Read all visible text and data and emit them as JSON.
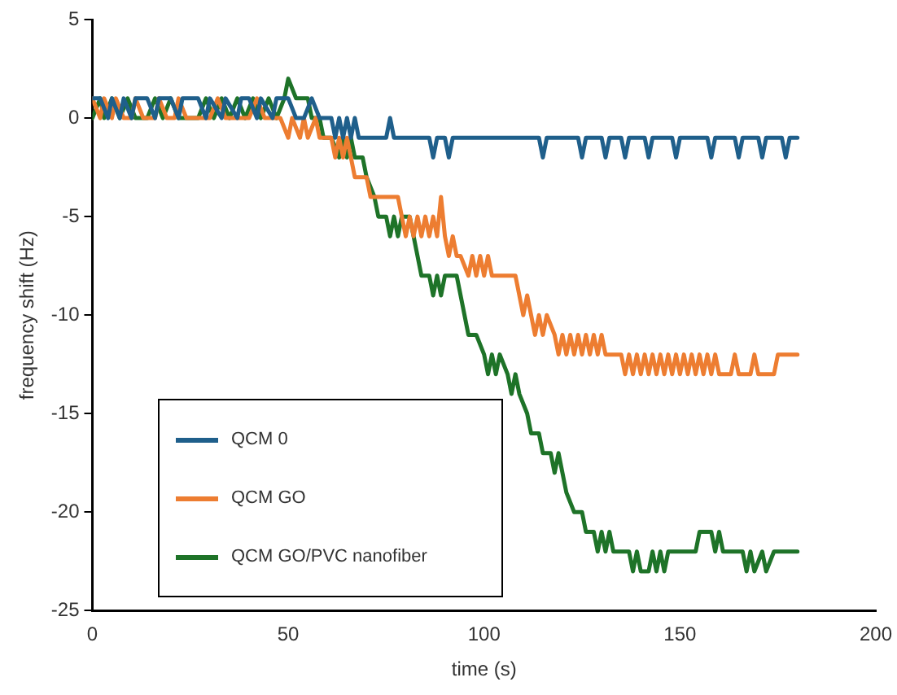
{
  "chart_data": {
    "type": "line",
    "xlabel": "time (s)",
    "ylabel": "frequency shift (Hz)",
    "xlim": [
      0,
      200
    ],
    "xticks": [
      0,
      50,
      100,
      150,
      200
    ],
    "ylim": [
      -25,
      5
    ],
    "yticks": [
      -25,
      -20,
      -15,
      -10,
      -5,
      0,
      5
    ],
    "grid": false,
    "legend": "bottom left",
    "marker": "none",
    "line_style": "solid",
    "series": [
      {
        "name": "QCM 0",
        "color": "#1f5f8b",
        "x": [
          0,
          2,
          4,
          5,
          7,
          8,
          10,
          11,
          14,
          16,
          17,
          20,
          22,
          23,
          27,
          29,
          30,
          33,
          34,
          37,
          38,
          40,
          42,
          43,
          46,
          47,
          50,
          52,
          54,
          56,
          58,
          61,
          62,
          63,
          64,
          65,
          66,
          67,
          68,
          70,
          75,
          76,
          77,
          86,
          87,
          88,
          90,
          91,
          92,
          114,
          115,
          116,
          124,
          125,
          126,
          130,
          131,
          132,
          135,
          136,
          137,
          141,
          142,
          143,
          148,
          149,
          150,
          157,
          158,
          159,
          164,
          165,
          166,
          170,
          171,
          172,
          176,
          177,
          178,
          180
        ],
        "values": [
          1,
          1,
          0,
          1,
          0,
          1,
          0,
          1,
          1,
          0,
          1,
          1,
          0,
          1,
          1,
          0,
          1,
          0,
          1,
          0,
          1,
          1,
          0,
          1,
          0,
          1,
          1,
          0,
          0,
          1,
          0,
          0,
          -1,
          0,
          -1,
          0,
          -1,
          0,
          -1,
          -1,
          -1,
          0,
          -1,
          -1,
          -2,
          -1,
          -1,
          -2,
          -1,
          -1,
          -2,
          -1,
          -1,
          -2,
          -1,
          -1,
          -2,
          -1,
          -1,
          -2,
          -1,
          -1,
          -2,
          -1,
          -1,
          -2,
          -1,
          -1,
          -2,
          -1,
          -1,
          -2,
          -1,
          -1,
          -2,
          -1,
          -1,
          -2,
          -1,
          -1
        ]
      },
      {
        "name": "QCM GO",
        "color": "#ed7d31",
        "x": [
          0,
          2,
          3,
          5,
          6,
          8,
          10,
          11,
          13,
          16,
          17,
          19,
          21,
          22,
          24,
          30,
          32,
          34,
          40,
          42,
          44,
          48,
          50,
          51,
          53,
          54,
          55,
          57,
          58,
          61,
          62,
          63,
          64,
          65,
          66,
          67,
          70,
          71,
          78,
          79,
          80,
          81,
          82,
          83,
          84,
          85,
          86,
          87,
          88,
          89,
          90,
          91,
          92,
          93,
          94,
          96,
          97,
          98,
          99,
          100,
          101,
          102,
          104,
          108,
          109,
          110,
          111,
          112,
          113,
          114,
          115,
          116,
          118,
          119,
          120,
          121,
          122,
          123,
          124,
          125,
          126,
          127,
          128,
          129,
          130,
          131,
          135,
          136,
          137,
          138,
          139,
          140,
          141,
          142,
          143,
          144,
          145,
          146,
          147,
          148,
          149,
          150,
          151,
          152,
          153,
          154,
          155,
          156,
          157,
          158,
          159,
          160,
          163,
          164,
          165,
          168,
          169,
          170,
          174,
          175,
          180
        ],
        "values": [
          1,
          0,
          1,
          0,
          1,
          0,
          0,
          1,
          0,
          0,
          1,
          0,
          0,
          1,
          0,
          0,
          1,
          0,
          0,
          1,
          0,
          0,
          -1,
          0,
          -1,
          0,
          -1,
          0,
          -1,
          -1,
          -2,
          -1,
          -2,
          -1,
          -2,
          -3,
          -3,
          -4,
          -4,
          -5,
          -6,
          -5,
          -6,
          -5,
          -6,
          -5,
          -6,
          -5,
          -6,
          -4,
          -6,
          -7,
          -6,
          -7,
          -7,
          -8,
          -7,
          -8,
          -7,
          -8,
          -7,
          -8,
          -8,
          -8,
          -9,
          -10,
          -9,
          -10,
          -11,
          -10,
          -11,
          -10,
          -11,
          -12,
          -11,
          -12,
          -11,
          -12,
          -11,
          -12,
          -11,
          -12,
          -11,
          -12,
          -11,
          -12,
          -12,
          -13,
          -12,
          -13,
          -12,
          -13,
          -12,
          -13,
          -12,
          -13,
          -12,
          -13,
          -12,
          -13,
          -12,
          -13,
          -12,
          -13,
          -12,
          -13,
          -12,
          -13,
          -12,
          -13,
          -12,
          -13,
          -13,
          -12,
          -13,
          -13,
          -12,
          -13,
          -13,
          -12,
          -12
        ]
      },
      {
        "name": "QCM GO/PVC nanofiber",
        "color": "#1e7328",
        "x": [
          0,
          2,
          3,
          5,
          7,
          9,
          11,
          14,
          16,
          18,
          20,
          22,
          27,
          29,
          31,
          33,
          35,
          37,
          39,
          41,
          43,
          45,
          47,
          49,
          50,
          52,
          55,
          56,
          58,
          59,
          61,
          63,
          64,
          65,
          66,
          67,
          69,
          70,
          72,
          73,
          75,
          76,
          77,
          78,
          79,
          81,
          82,
          83,
          84,
          86,
          87,
          88,
          89,
          90,
          93,
          94,
          95,
          96,
          98,
          100,
          101,
          102,
          103,
          104,
          106,
          107,
          108,
          109,
          111,
          112,
          114,
          115,
          117,
          118,
          119,
          120,
          121,
          123,
          125,
          126,
          128,
          129,
          130,
          131,
          132,
          133,
          137,
          138,
          139,
          140,
          142,
          143,
          144,
          145,
          146,
          147,
          154,
          155,
          158,
          159,
          160,
          161,
          166,
          167,
          168,
          169,
          171,
          172,
          174,
          180
        ],
        "values": [
          0,
          1,
          0,
          1,
          0,
          1,
          0,
          0,
          1,
          0,
          1,
          0,
          0,
          1,
          0,
          1,
          0,
          1,
          0,
          1,
          0,
          1,
          0,
          1,
          2,
          1,
          1,
          0,
          0,
          -1,
          -1,
          -2,
          -1,
          -2,
          -1,
          -2,
          -2,
          -3,
          -4,
          -5,
          -5,
          -6,
          -5,
          -6,
          -5,
          -5,
          -6,
          -7,
          -8,
          -8,
          -9,
          -8,
          -9,
          -8,
          -8,
          -9,
          -10,
          -11,
          -11,
          -12,
          -13,
          -12,
          -13,
          -12,
          -13,
          -14,
          -13,
          -14,
          -15,
          -16,
          -16,
          -17,
          -17,
          -18,
          -17,
          -18,
          -19,
          -20,
          -20,
          -21,
          -21,
          -22,
          -21,
          -22,
          -21,
          -22,
          -22,
          -23,
          -22,
          -23,
          -23,
          -22,
          -23,
          -22,
          -23,
          -22,
          -22,
          -21,
          -21,
          -22,
          -21,
          -22,
          -22,
          -23,
          -22,
          -23,
          -22,
          -23,
          -22,
          -22
        ]
      }
    ]
  }
}
